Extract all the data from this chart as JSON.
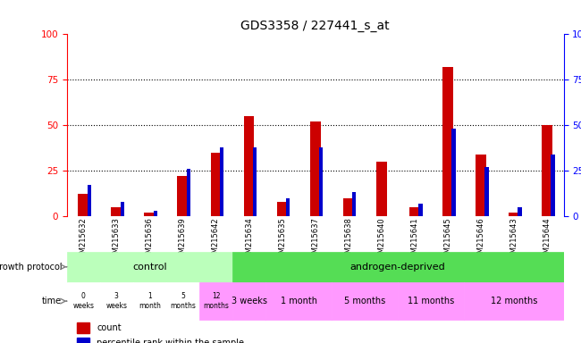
{
  "title": "GDS3358 / 227441_s_at",
  "samples": [
    "GSM215632",
    "GSM215633",
    "GSM215636",
    "GSM215639",
    "GSM215642",
    "GSM215634",
    "GSM215635",
    "GSM215637",
    "GSM215638",
    "GSM215640",
    "GSM215641",
    "GSM215645",
    "GSM215646",
    "GSM215643",
    "GSM215644"
  ],
  "count_values": [
    12,
    5,
    2,
    22,
    35,
    55,
    8,
    52,
    10,
    30,
    5,
    82,
    34,
    2,
    50
  ],
  "percentile_values": [
    17,
    8,
    3,
    26,
    38,
    38,
    10,
    38,
    13,
    0,
    7,
    48,
    27,
    5,
    34
  ],
  "bar_color": "#cc0000",
  "percentile_color": "#0000cc",
  "ylim": [
    0,
    100
  ],
  "yticks": [
    0,
    25,
    50,
    75,
    100
  ],
  "growth_protocol_label": "growth protocol",
  "time_label": "time",
  "control_label": "control",
  "androgen_label": "androgen-deprived",
  "control_color": "#bbffbb",
  "androgen_color": "#55dd55",
  "time_control_labels": [
    "0\nweeks",
    "3\nweeks",
    "1\nmonth",
    "5\nmonths",
    "12\nmonths"
  ],
  "time_androgen_labels": [
    "3 weeks",
    "1 month",
    "5 months",
    "11 months",
    "12 months"
  ],
  "time_control_color": "#ffffff",
  "time_androgen_color": "#ff99ff",
  "time_androgen_group_sizes": [
    1,
    2,
    2,
    2,
    3
  ],
  "ctrl_n": 5,
  "count_legend": "count",
  "percentile_legend": "percentile rank within the sample"
}
